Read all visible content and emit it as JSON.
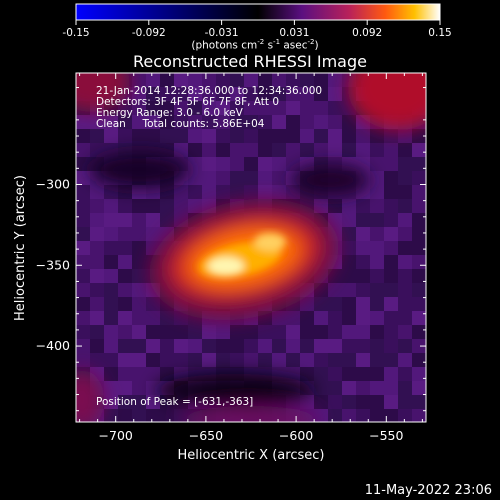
{
  "colorbar": {
    "ticks": [
      "-0.15",
      "-0.092",
      "-0.031",
      "0.031",
      "0.092",
      "0.15"
    ],
    "unit_pre": "(photons cm",
    "unit_sup1": "-2",
    "unit_mid1": " s",
    "unit_sup2": "-1",
    "unit_mid2": " asec",
    "unit_sup3": "-2",
    "unit_post": ")"
  },
  "chart_data": {
    "type": "heatmap",
    "title": "Reconstructed RHESSI Image",
    "xlabel": "Heliocentric X (arcsec)",
    "ylabel": "Heliocentric Y (arcsec)",
    "xlim": [
      -722,
      -528
    ],
    "ylim": [
      -447,
      -231
    ],
    "x_ticks": [
      "-700",
      "-650",
      "-600",
      "-550"
    ],
    "y_ticks": [
      "-300",
      "-350",
      "-400"
    ],
    "x_tick_values": [
      -700,
      -650,
      -600,
      -550
    ],
    "y_tick_values": [
      -300,
      -350,
      -400
    ],
    "peak": {
      "x": -631,
      "y": -363,
      "value": 0.15
    },
    "color_range": [
      -0.15,
      0.15
    ],
    "colormap": [
      "#0000ff",
      "#000000",
      "#6a0f8e",
      "#d94b1c",
      "#ffa800",
      "#ffffff"
    ]
  },
  "annotations": {
    "time_range": "21-Jan-2014 12:28:36.000 to 12:34:36.000",
    "detectors": "Detectors: 3F 4F 5F 6F 7F 8F, Att 0",
    "energy": "Energy Range: 3.0 - 6.0 keV",
    "clean": "Clean     Total counts: 5.86E+04",
    "peak_position": "Position of Peak = [-631,-363]"
  },
  "footer": {
    "date": "11-May-2022 23:06"
  }
}
